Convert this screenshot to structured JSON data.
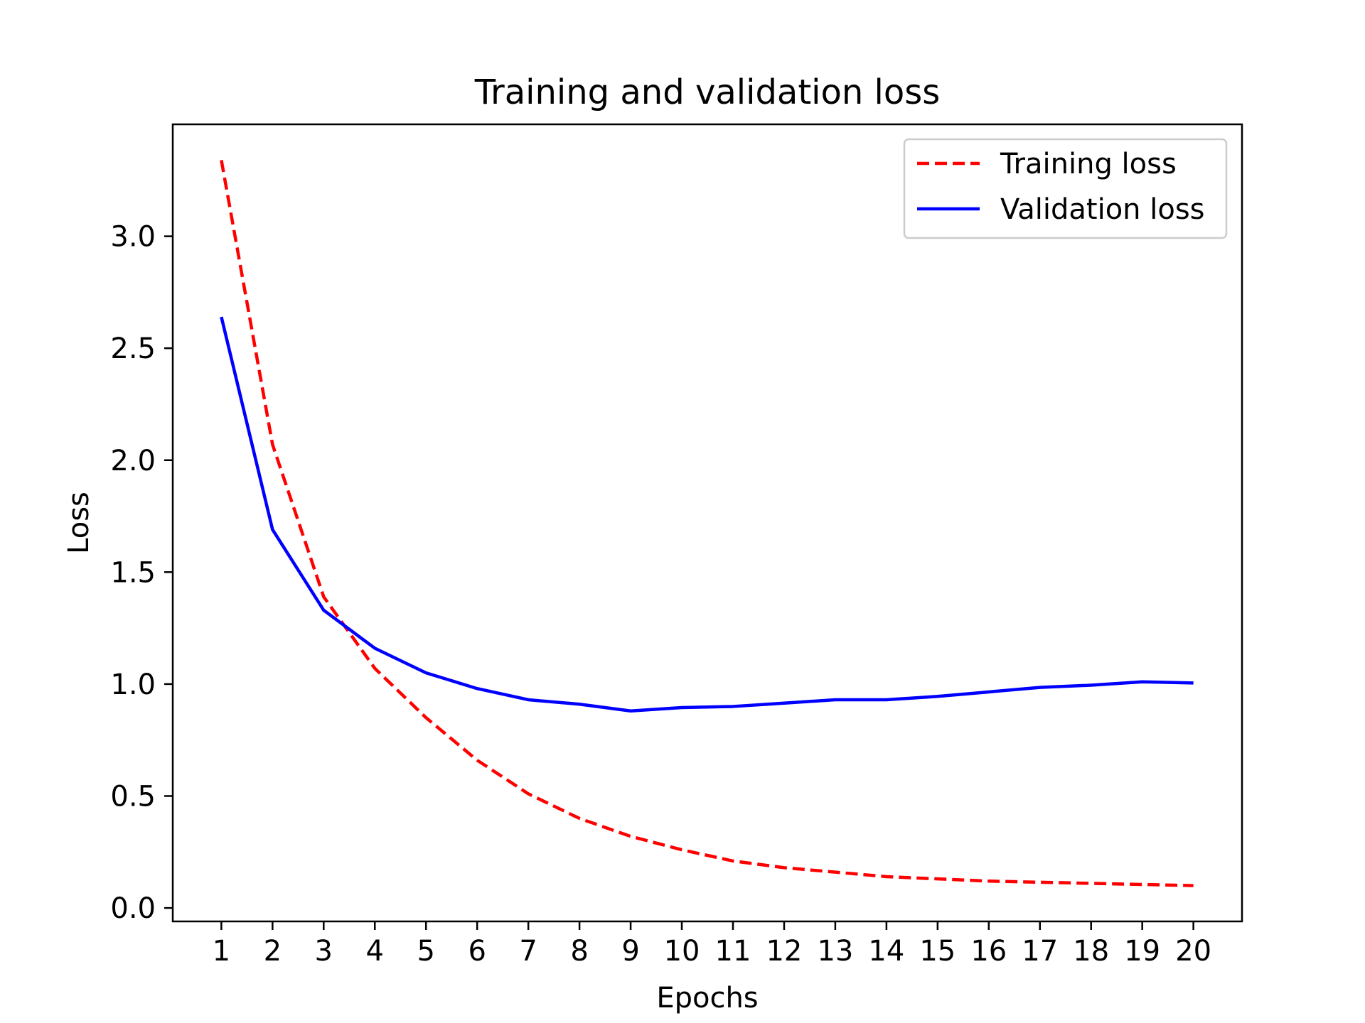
{
  "chart_data": {
    "type": "line",
    "title": "Training and validation loss",
    "xlabel": "Epochs",
    "ylabel": "Loss",
    "x": [
      1,
      2,
      3,
      4,
      5,
      6,
      7,
      8,
      9,
      10,
      11,
      12,
      13,
      14,
      15,
      16,
      17,
      18,
      19,
      20
    ],
    "xlim": [
      0.05,
      20.95
    ],
    "ylim": [
      -0.06,
      3.5
    ],
    "xticks": [
      1,
      2,
      3,
      4,
      5,
      6,
      7,
      8,
      9,
      10,
      11,
      12,
      13,
      14,
      15,
      16,
      17,
      18,
      19,
      20
    ],
    "yticks": [
      0.0,
      0.5,
      1.0,
      1.5,
      2.0,
      2.5,
      3.0
    ],
    "ytick_labels": [
      "0.0",
      "0.5",
      "1.0",
      "1.5",
      "2.0",
      "2.5",
      "3.0"
    ],
    "grid": false,
    "legend_position": "top-right",
    "series": [
      {
        "name": "Training loss",
        "color": "#ff0000",
        "style": "dashed",
        "values": [
          3.34,
          2.07,
          1.39,
          1.07,
          0.85,
          0.66,
          0.51,
          0.4,
          0.32,
          0.26,
          0.21,
          0.18,
          0.16,
          0.14,
          0.13,
          0.12,
          0.115,
          0.11,
          0.105,
          0.1
        ]
      },
      {
        "name": "Validation loss",
        "color": "#0000ff",
        "style": "solid",
        "values": [
          2.64,
          1.69,
          1.33,
          1.16,
          1.05,
          0.98,
          0.93,
          0.91,
          0.88,
          0.895,
          0.9,
          0.915,
          0.93,
          0.93,
          0.945,
          0.965,
          0.985,
          0.995,
          1.01,
          1.005
        ]
      }
    ]
  }
}
